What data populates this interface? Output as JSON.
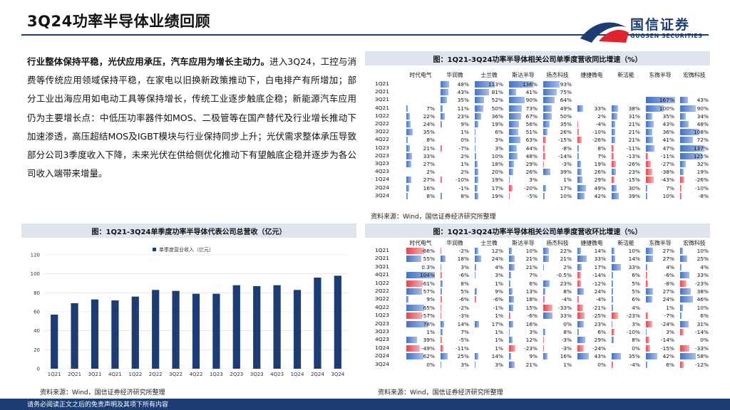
{
  "title": "3Q24功率半导体业绩回顾",
  "logo": {
    "cn": "国信证券",
    "en": "GUOSEN SECURITIES"
  },
  "body": {
    "lead": "行业整体保持平稳，光伏应用承压，汽车应用为增长主动力。",
    "text": "进入3Q24，工控与消费等传统应用领域保持平稳，在家电以旧换新政策推动下，白电排产有所增加；部分工业出海应用如电动工具等保持增长，传统工业逐步触底企稳；新能源汽车应用仍为主要增长点：中低压功率器件如MOS、二极管等在国产替代及行业增长推动下加速渗透，高压超结MOS及IGBT模块与行业保持同步上升；光伏需求整体承压导致部分公司3季度收入下降，未来光伏在供给侧优化推动下有望触底企稳并逐步为各公司收入端带来增量。"
  },
  "panels": {
    "yoy_title": "图：1Q21-3Q24功率半导体相关公司单季度营收同比增速（%）",
    "total_title": "图：1Q21-3Q24单季度功率半导体代表公司总营收（亿元）",
    "qoq_title": "图：1Q21-3Q24功率半导体相关公司单季度营收环比增速（%）",
    "source": "资料来源：Wind，国信证券经济研究所整理"
  },
  "footer": "请务必阅读正文之后的免责声明及其项下所有内容",
  "colors": {
    "accent": "#1c3d74",
    "pos": "#4472c4",
    "neg": "#e8424d"
  },
  "yoy": {
    "companies": [
      "时代电气",
      "华润微",
      "士兰微",
      "斯达半导",
      "扬杰科技",
      "捷捷微电",
      "新洁能",
      "东微半导",
      "宏微科技"
    ],
    "quarters": [
      "1Q21",
      "2Q21",
      "3Q21",
      "4Q21",
      "1Q22",
      "2Q22",
      "3Q22",
      "4Q22",
      "1Q23",
      "2Q23",
      "3Q23",
      "4Q23",
      "1Q24",
      "2Q24",
      "3Q24"
    ],
    "values": [
      [
        null,
        48,
        113,
        136,
        93,
        null,
        null,
        null,
        null
      ],
      [
        null,
        43,
        81,
        41,
        75,
        null,
        null,
        null,
        null
      ],
      [
        null,
        35,
        52,
        90,
        64,
        null,
        null,
        167,
        43
      ],
      [
        7,
        11,
        50,
        73,
        49,
        33,
        38,
        100,
        90
      ],
      [
        22,
        23,
        36,
        67,
        50,
        2,
        31,
        35,
        34
      ],
      [
        24,
        9,
        19,
        56,
        35,
        -4,
        21,
        43,
        48
      ],
      [
        35,
        1,
        6,
        51,
        26,
        -10,
        21,
        36,
        108
      ],
      [
        8,
        0,
        3,
        63,
        -15,
        -26,
        21,
        41,
        72
      ],
      [
        21,
        -7,
        3,
        44,
        -8,
        8,
        -11,
        47,
        137
      ],
      [
        33,
        2,
        10,
        48,
        -14,
        7,
        -13,
        -11,
        125
      ],
      [
        27,
        1,
        18,
        29,
        -3,
        19,
        -26,
        -27,
        32
      ],
      [
        2,
        2,
        20,
        26,
        39,
        26,
        23,
        -38,
        19
      ],
      [
        27,
        -10,
        19,
        3,
        1,
        29,
        -15,
        -43,
        -26
      ],
      [
        16,
        -1,
        17,
        -20,
        17,
        49,
        30,
        7,
        -10
      ],
      [
        8,
        8,
        19,
        -5,
        10,
        42,
        39,
        10,
        -8
      ]
    ]
  },
  "qoq": {
    "companies": [
      "时代电气",
      "华润微",
      "士兰微",
      "斯达半导",
      "扬杰科技",
      "捷捷微电",
      "新洁能",
      "东微半导",
      "宏微科技"
    ],
    "quarters": [
      "1Q21",
      "2Q21",
      "3Q21",
      "4Q21",
      "1Q22",
      "2Q22",
      "3Q22",
      "4Q22",
      "1Q23",
      "2Q23",
      "3Q23",
      "4Q23",
      "1Q24",
      "2Q24",
      "3Q24"
    ],
    "values": [
      [
        -66,
        -2,
        12,
        10,
        22,
        14,
        10,
        27,
        10
      ],
      [
        55,
        18,
        24,
        21,
        21,
        33,
        14,
        27,
        25
      ],
      [
        0.3,
        3,
        4,
        21,
        2,
        17,
        33,
        4,
        4
      ],
      [
        104,
        -6,
        3,
        7,
        -0.5,
        -14,
        6,
        -6,
        33
      ],
      [
        -61,
        8,
        1,
        6,
        23,
        -12,
        5,
        -8,
        -23
      ],
      [
        57,
        5,
        9,
        13,
        8,
        24,
        5,
        27,
        38
      ],
      [
        9,
        -6,
        -6,
        18,
        -4,
        -4,
        6,
        24,
        46
      ],
      [
        65,
        -2,
        -1,
        15,
        -33,
        -21,
        4,
        1,
        10
      ],
      [
        -57,
        -3,
        1,
        -6,
        33,
        -25,
        -23,
        -7,
        6
      ],
      [
        78,
        14,
        17,
        16,
        0,
        23,
        3,
        -24,
        31
      ],
      [
        1,
        7,
        1,
        3,
        8,
        6,
        -10,
        3,
        -14
      ],
      [
        39,
        -5,
        1,
        12,
        -3,
        29,
        8,
        -14,
        0
      ],
      [
        -49,
        -11,
        1,
        -23,
        -3,
        -24,
        0,
        -15,
        -33
      ],
      [
        62,
        25,
        14,
        9,
        16,
        43,
        35,
        42,
        58
      ],
      [
        0,
        3,
        3,
        21,
        1,
        0,
        -4,
        6,
        -12
      ]
    ]
  },
  "chart_data": {
    "type": "bar",
    "categories": [
      "1Q21",
      "2Q21",
      "3Q21",
      "4Q21",
      "1Q22",
      "2Q22",
      "3Q22",
      "4Q22",
      "1Q23",
      "2Q23",
      "3Q23",
      "4Q23",
      "1Q24",
      "2Q24",
      "3Q24"
    ],
    "series": [
      {
        "name": "单季度营业收入（亿元）",
        "values": [
          57,
          69,
          73,
          72,
          76,
          83,
          82,
          79,
          79,
          88,
          87,
          88,
          83,
          96,
          98
        ]
      }
    ],
    "ylim": [
      0,
      120
    ],
    "yticks": [
      0,
      20,
      40,
      60,
      80,
      100,
      120
    ],
    "legend": "top-left",
    "color": "#1c3d74"
  }
}
